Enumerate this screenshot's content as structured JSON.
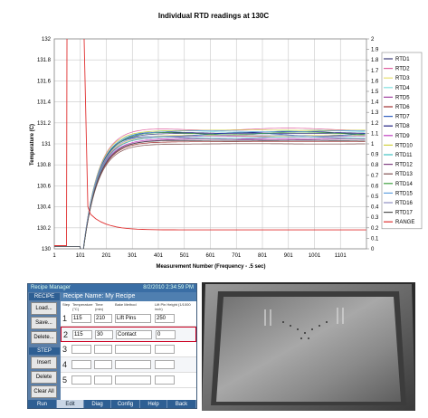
{
  "chart_data": {
    "type": "line",
    "title": "Individual RTD readings at 130C",
    "xlabel": "Measurement Number (Frequency - .5 sec)",
    "ylabel": "Temperature (C)",
    "xlim": [
      1,
      1201
    ],
    "ylim": [
      130,
      132
    ],
    "y2lim": [
      0,
      2
    ],
    "xticks": [
      1,
      101,
      201,
      301,
      401,
      501,
      601,
      701,
      801,
      901,
      1001,
      1101
    ],
    "yticks": [
      130,
      130.2,
      130.4,
      130.6,
      130.8,
      131,
      131.2,
      131.4,
      131.6,
      131.8,
      132
    ],
    "y2ticks": [
      0,
      0.1,
      0.2,
      0.3,
      0.4,
      0.5,
      0.6,
      0.7,
      0.8,
      0.9,
      1,
      1.1,
      1.2,
      1.3,
      1.4,
      1.5,
      1.6,
      1.7,
      1.8,
      1.9,
      2
    ],
    "legend_position": "right",
    "series": [
      {
        "name": "RTD1",
        "color": "#3c3c78",
        "steady": 131.1,
        "offset": 0.0
      },
      {
        "name": "RTD2",
        "color": "#e060a0",
        "steady": 131.14,
        "offset": -0.01
      },
      {
        "name": "RTD3",
        "color": "#e8e070",
        "steady": 131.08,
        "offset": 0.005
      },
      {
        "name": "RTD4",
        "color": "#80e0e0",
        "steady": 131.12,
        "offset": 0.01
      },
      {
        "name": "RTD5",
        "color": "#a040a0",
        "steady": 131.07,
        "offset": -0.005
      },
      {
        "name": "RTD6",
        "color": "#a03030",
        "steady": 131.02,
        "offset": 0.0
      },
      {
        "name": "RTD7",
        "color": "#3060c0",
        "steady": 131.09,
        "offset": 0.015
      },
      {
        "name": "RTD8",
        "color": "#202080",
        "steady": 131.11,
        "offset": -0.008
      },
      {
        "name": "RTD9",
        "color": "#c040c0",
        "steady": 131.05,
        "offset": 0.004
      },
      {
        "name": "RTD10",
        "color": "#d0d040",
        "steady": 131.13,
        "offset": -0.002
      },
      {
        "name": "RTD11",
        "color": "#40c0c0",
        "steady": 131.06,
        "offset": 0.008
      },
      {
        "name": "RTD12",
        "color": "#804080",
        "steady": 131.04,
        "offset": -0.004
      },
      {
        "name": "RTD13",
        "color": "#805050",
        "steady": 131.0,
        "offset": 0.002
      },
      {
        "name": "RTD14",
        "color": "#40a040",
        "steady": 131.1,
        "offset": -0.012
      },
      {
        "name": "RTD15",
        "color": "#60a0e0",
        "steady": 131.12,
        "offset": 0.006
      },
      {
        "name": "RTD16",
        "color": "#9090c0",
        "steady": 131.08,
        "offset": -0.006
      },
      {
        "name": "RTD17",
        "color": "#505050",
        "steady": 131.03,
        "offset": 0.003
      },
      {
        "name": "RANGE",
        "color": "#e03030",
        "axis": "right"
      }
    ]
  },
  "recipe_manager": {
    "window_title": "Recipe Manager",
    "datetime": "8/2/2010 2:34:59 PM",
    "recipe_header": "RECIPE",
    "recipe_name": "Recipe Name: My Recipe",
    "step_header": "STEP",
    "buttons": {
      "load": "Load...",
      "save": "Save...",
      "delete": "Delete...",
      "insert": "Insert",
      "delete_step": "Delete",
      "clear_all": "Clear All"
    },
    "columns": {
      "step": "Step",
      "temperature": "Temperature (°C)",
      "time": "Time (min)",
      "bake_method": "Bake Method",
      "lift_pin_height": "Lift Pin Height (1/1000 inch)"
    },
    "rows": [
      {
        "step": "1",
        "temperature": "115",
        "time": "210",
        "bake_method": "Lift Pins",
        "lift_pin_height": "250"
      },
      {
        "step": "2",
        "temperature": "115",
        "time": "30",
        "bake_method": "Contact",
        "lift_pin_height": "0"
      },
      {
        "step": "3",
        "temperature": "",
        "time": "",
        "bake_method": "",
        "lift_pin_height": ""
      },
      {
        "step": "4",
        "temperature": "",
        "time": "",
        "bake_method": "",
        "lift_pin_height": ""
      },
      {
        "step": "5",
        "temperature": "",
        "time": "",
        "bake_method": "",
        "lift_pin_height": ""
      }
    ],
    "tabs": [
      "Run",
      "Edit",
      "Diag",
      "Config",
      "Help",
      "Back"
    ],
    "active_tab": "Edit"
  }
}
